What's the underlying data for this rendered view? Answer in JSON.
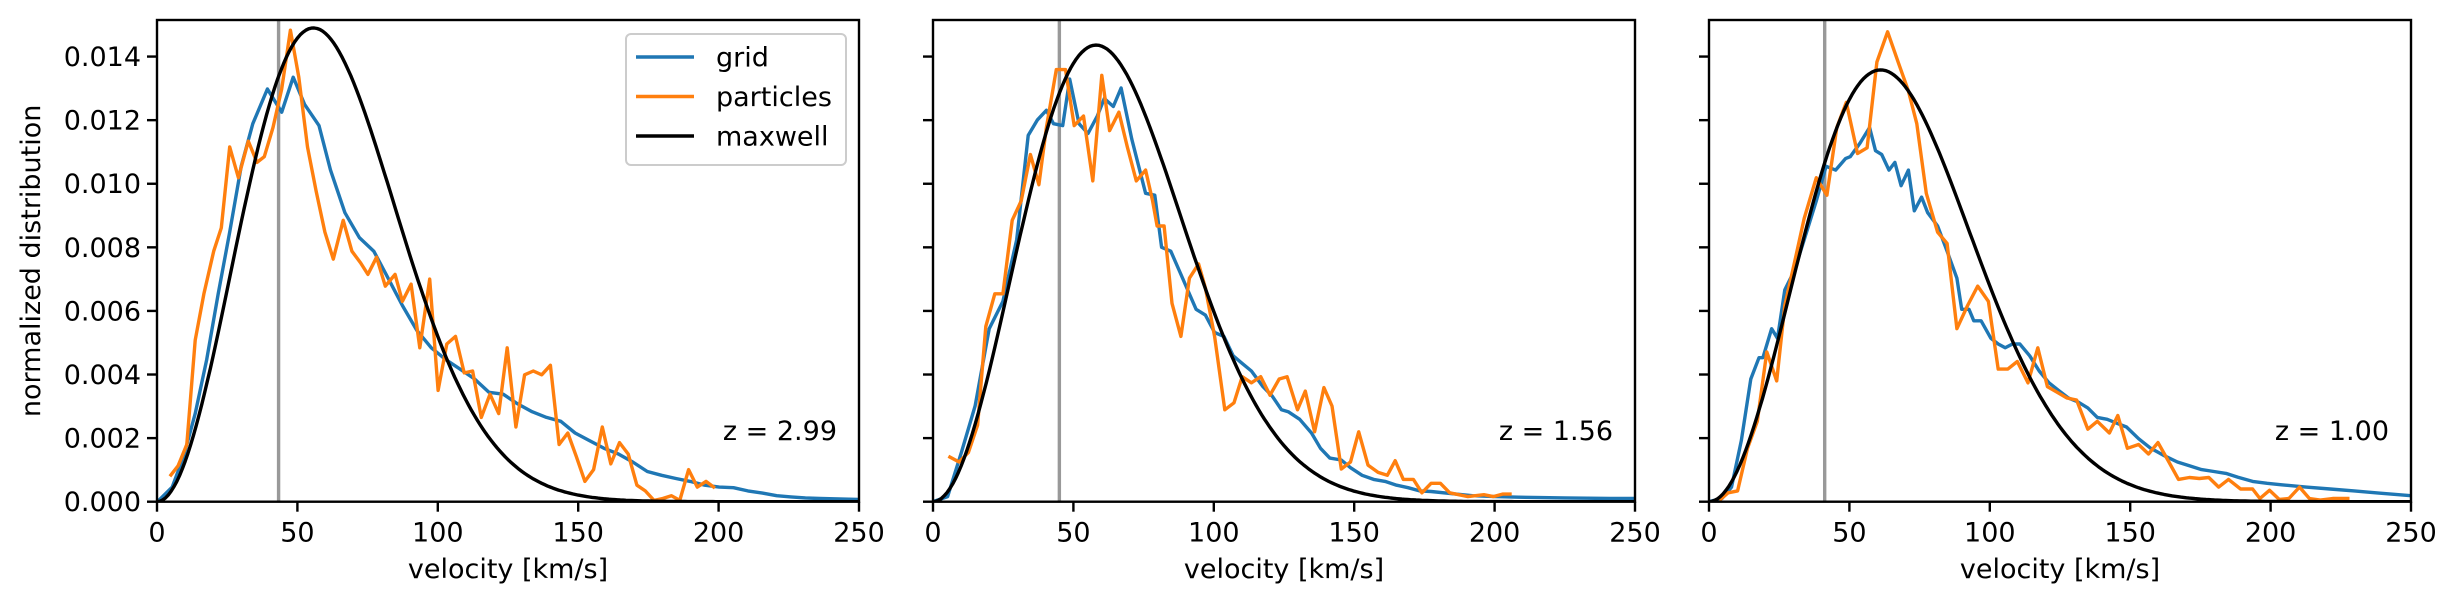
{
  "chart_data": [
    {
      "type": "line",
      "panel": 1,
      "title": "",
      "xlabel": "velocity [km/s]",
      "ylabel": "normalized distribution",
      "xlim": [
        0,
        250
      ],
      "ylim": [
        0,
        0.01515
      ],
      "grid": false,
      "x_ticks": [
        0,
        50,
        100,
        150,
        200,
        250
      ],
      "x_tick_labels": [
        "0",
        "50",
        "100",
        "150",
        "200",
        "250"
      ],
      "y_ticks": [
        0,
        0.002,
        0.004,
        0.006,
        0.008,
        0.01,
        0.012,
        0.014
      ],
      "y_tick_labels": [
        "0.000",
        "0.002",
        "0.004",
        "0.006",
        "0.008",
        "0.010",
        "0.012",
        "0.014"
      ],
      "show_y_tick_labels": true,
      "annotation": "z = 2.99",
      "vertical_line": {
        "x": 43.3,
        "color": "#999999"
      },
      "legend": {
        "placement": "top-right",
        "entries": [
          "grid",
          "particles",
          "maxwell"
        ]
      },
      "series": [
        {
          "name": "grid",
          "color": "#1f77b4",
          "x": [
            0.3,
            5.4,
            9.5,
            13.6,
            17.7,
            21.8,
            25.9,
            30.0,
            34.1,
            39.3,
            44.4,
            48.5,
            52.6,
            57.7,
            61.8,
            66.9,
            72.1,
            77.2,
            82.3,
            87.4,
            92.6,
            97.7,
            102.8,
            107.9,
            113.1,
            118.2,
            123.3,
            128.4,
            133.6,
            138.7,
            143.8,
            148.9,
            154.1,
            159.2,
            164.3,
            169.4,
            174.6,
            179.7,
            184.8,
            189.9,
            195.1,
            200.2,
            205.3,
            210.4,
            215.6,
            220.7,
            225.8,
            230.9,
            236.1,
            241.2,
            250.0
          ],
          "y": [
            1e-05,
            0.00046,
            0.00143,
            0.00277,
            0.00447,
            0.00654,
            0.00848,
            0.01055,
            0.01189,
            0.01298,
            0.01225,
            0.01335,
            0.01249,
            0.01183,
            0.01043,
            0.00909,
            0.0083,
            0.00788,
            0.00703,
            0.00617,
            0.00538,
            0.00484,
            0.00447,
            0.00417,
            0.00386,
            0.00344,
            0.00338,
            0.00308,
            0.00283,
            0.00265,
            0.00253,
            0.00216,
            0.00192,
            0.00168,
            0.0015,
            0.00125,
            0.00095,
            0.00083,
            0.00073,
            0.00064,
            0.00052,
            0.00046,
            0.00044,
            0.00034,
            0.00027,
            0.00019,
            0.00015,
            0.00012,
            0.0001,
            9e-05,
            7e-05
          ]
        },
        {
          "name": "particles",
          "color": "#ff7f0e",
          "x": [
            4.6,
            7.5,
            10.6,
            13.6,
            16.7,
            20.2,
            22.9,
            25.9,
            29.0,
            32.5,
            35.6,
            38.2,
            41.3,
            44.4,
            47.5,
            50.5,
            53.6,
            56.7,
            59.8,
            62.8,
            66.3,
            69.4,
            72.5,
            75.1,
            78.2,
            81.3,
            84.8,
            87.4,
            90.5,
            93.6,
            97.1,
            100.1,
            103.2,
            106.3,
            109.4,
            112.4,
            115.5,
            118.6,
            121.7,
            124.7,
            127.8,
            130.9,
            134.0,
            137.0,
            140.1,
            143.2,
            146.3,
            149.3,
            152.4,
            155.5,
            158.6,
            161.6,
            164.7,
            167.8,
            170.9,
            173.9,
            177.0,
            180.1,
            183.2,
            186.2,
            189.3,
            192.4,
            195.5,
            198.7
          ],
          "y": [
            0.0008,
            0.00113,
            0.0018,
            0.00508,
            0.00654,
            0.00788,
            0.00861,
            0.01116,
            0.01019,
            0.01134,
            0.01067,
            0.01085,
            0.01177,
            0.01298,
            0.01483,
            0.01335,
            0.01116,
            0.00976,
            0.00848,
            0.00763,
            0.00885,
            0.00788,
            0.00751,
            0.00715,
            0.00769,
            0.00678,
            0.00715,
            0.0063,
            0.00684,
            0.00484,
            0.007,
            0.0035,
            0.00496,
            0.0052,
            0.00405,
            0.00411,
            0.00265,
            0.00338,
            0.00277,
            0.00484,
            0.00235,
            0.00399,
            0.00411,
            0.00399,
            0.00429,
            0.0018,
            0.00216,
            0.00143,
            0.00064,
            0.00101,
            0.00235,
            0.00119,
            0.00186,
            0.0015,
            0.00052,
            0.00034,
            4e-05,
            0.0001,
            0.00019,
            4e-05,
            0.00101,
            0.00046,
            0.00064,
            0.00043
          ]
        },
        {
          "name": "maxwell",
          "color": "#000000",
          "model": "maxwell-boltzmann",
          "peak_velocity": 55.7,
          "peak_value": 0.0149
        }
      ]
    },
    {
      "type": "line",
      "panel": 2,
      "title": "",
      "xlabel": "velocity [km/s]",
      "ylabel": "",
      "xlim": [
        0,
        250
      ],
      "ylim": [
        0,
        0.01515
      ],
      "grid": false,
      "x_ticks": [
        0,
        50,
        100,
        150,
        200,
        250
      ],
      "x_tick_labels": [
        "0",
        "50",
        "100",
        "150",
        "200",
        "250"
      ],
      "y_ticks": [
        0,
        0.002,
        0.004,
        0.006,
        0.008,
        0.01,
        0.012,
        0.014
      ],
      "y_tick_labels": [],
      "show_y_tick_labels": false,
      "annotation": "z = 1.56",
      "vertical_line": {
        "x": 45.0,
        "color": "#999999"
      },
      "legend": null,
      "series": [
        {
          "name": "grid",
          "color": "#1f77b4",
          "x": [
            0.3,
            5.2,
            10.1,
            15.0,
            20.0,
            24.9,
            29.8,
            33.9,
            37.2,
            40.4,
            42.9,
            46.2,
            48.7,
            52.0,
            55.2,
            58.5,
            61.0,
            64.2,
            67.0,
            70.8,
            75.7,
            79.0,
            81.4,
            84.7,
            88.0,
            93.7,
            97.0,
            100.3,
            103.6,
            106.9,
            110.1,
            113.4,
            117.5,
            120.8,
            124.1,
            126.5,
            130.6,
            134.8,
            138.0,
            141.3,
            145.4,
            148.7,
            152.8,
            156.9,
            161.0,
            165.1,
            169.2,
            173.3,
            177.4,
            184.0,
            192.1,
            200.3,
            208.5,
            216.7,
            224.9,
            233.1,
            241.3,
            250.0
          ],
          "y": [
            1e-05,
            0.00016,
            0.00155,
            0.00301,
            0.00544,
            0.0063,
            0.00824,
            0.01152,
            0.01201,
            0.01231,
            0.01189,
            0.01183,
            0.01329,
            0.01189,
            0.01158,
            0.01213,
            0.01268,
            0.01243,
            0.01301,
            0.0114,
            0.0097,
            0.00964,
            0.008,
            0.00788,
            0.00721,
            0.00605,
            0.00587,
            0.00532,
            0.0052,
            0.00459,
            0.00435,
            0.00411,
            0.00362,
            0.00332,
            0.00289,
            0.00283,
            0.00259,
            0.00216,
            0.00168,
            0.00137,
            0.00131,
            0.00107,
            0.00083,
            0.0007,
            0.00064,
            0.00052,
            0.00044,
            0.00034,
            0.00032,
            0.00026,
            0.00019,
            0.00016,
            0.00014,
            0.00013,
            0.00012,
            0.00011,
            0.0001,
            0.0001
          ]
        },
        {
          "name": "particles",
          "color": "#ff7f0e",
          "x": [
            5.5,
            9.3,
            12.6,
            15.9,
            18.8,
            22.0,
            24.9,
            28.2,
            31.4,
            34.7,
            37.7,
            40.4,
            43.9,
            47.2,
            50.3,
            53.6,
            56.9,
            60.1,
            62.9,
            66.2,
            69.2,
            72.4,
            75.7,
            78.2,
            79.8,
            82.3,
            85.1,
            88.3,
            91.3,
            94.6,
            97.0,
            100.3,
            103.9,
            107.2,
            110.1,
            113.4,
            116.7,
            120.0,
            123.3,
            126.1,
            129.8,
            132.6,
            135.9,
            139.2,
            142.1,
            145.4,
            148.7,
            151.6,
            154.9,
            158.5,
            161.8,
            164.6,
            167.5,
            171.1,
            174.1,
            177.4,
            180.7,
            184.0,
            187.2,
            190.5,
            196.2,
            199.5,
            202.8,
            206.1
          ],
          "y": [
            0.00143,
            0.00125,
            0.00155,
            0.00241,
            0.00551,
            0.00654,
            0.00654,
            0.00885,
            0.00946,
            0.01092,
            0.00997,
            0.01177,
            0.01359,
            0.01359,
            0.01183,
            0.01213,
            0.01009,
            0.01341,
            0.01167,
            0.01225,
            0.01116,
            0.01009,
            0.01043,
            0.00946,
            0.00867,
            0.00867,
            0.00624,
            0.0052,
            0.00703,
            0.00748,
            0.00672,
            0.0052,
            0.00289,
            0.00311,
            0.00393,
            0.00374,
            0.00393,
            0.00335,
            0.00386,
            0.00393,
            0.00289,
            0.00348,
            0.0022,
            0.00359,
            0.00301,
            0.00103,
            0.00125,
            0.0022,
            0.00115,
            0.00092,
            0.00083,
            0.00129,
            0.0007,
            0.0007,
            0.00028,
            0.00058,
            0.00058,
            0.00028,
            0.00022,
            0.00016,
            0.00022,
            0.00016,
            0.00024,
            0.00024
          ]
        },
        {
          "name": "maxwell",
          "color": "#000000",
          "model": "maxwell-boltzmann",
          "peak_velocity": 58.1,
          "peak_value": 0.01436
        }
      ]
    },
    {
      "type": "line",
      "panel": 3,
      "title": "",
      "xlabel": "velocity [km/s]",
      "ylabel": "",
      "xlim": [
        0,
        250
      ],
      "ylim": [
        0,
        0.01515
      ],
      "grid": false,
      "x_ticks": [
        0,
        50,
        100,
        150,
        200,
        250
      ],
      "x_tick_labels": [
        "0",
        "50",
        "100",
        "150",
        "200",
        "250"
      ],
      "y_ticks": [
        0,
        0.002,
        0.004,
        0.006,
        0.008,
        0.01,
        0.012,
        0.014
      ],
      "y_tick_labels": [],
      "show_y_tick_labels": false,
      "annotation": "z = 1.00",
      "vertical_line": {
        "x": 41.2,
        "color": "#999999"
      },
      "legend": null,
      "series": [
        {
          "name": "grid",
          "color": "#1f77b4",
          "x": [
            0.2,
            4.6,
            8.0,
            11.5,
            14.9,
            17.8,
            19.2,
            22.3,
            24.4,
            27.0,
            30.4,
            33.9,
            38.2,
            41.7,
            45.1,
            48.6,
            50.3,
            53.8,
            57.2,
            59.3,
            61.5,
            64.1,
            66.2,
            68.4,
            71.0,
            73.1,
            75.7,
            77.9,
            81.4,
            84.8,
            88.3,
            90.0,
            92.6,
            94.3,
            96.9,
            100.4,
            103.0,
            105.5,
            108.1,
            110.7,
            114.2,
            117.6,
            121.1,
            124.5,
            128.0,
            131.4,
            134.9,
            138.3,
            141.8,
            145.2,
            148.7,
            153.0,
            157.3,
            162.5,
            166.8,
            171.1,
            175.4,
            179.8,
            184.1,
            188.4,
            193.6,
            198.8,
            203.9,
            212.6,
            221.2,
            229.8,
            238.5,
            250.0
          ],
          "y": [
            1e-05,
            0.0001,
            0.00046,
            0.00192,
            0.00386,
            0.00453,
            0.00453,
            0.00544,
            0.00514,
            0.00666,
            0.00727,
            0.00824,
            0.00946,
            0.01055,
            0.01043,
            0.01079,
            0.01085,
            0.01128,
            0.01177,
            0.01104,
            0.01092,
            0.01043,
            0.01067,
            0.00994,
            0.01043,
            0.00915,
            0.00958,
            0.00909,
            0.00867,
            0.00788,
            0.00703,
            0.00605,
            0.00605,
            0.00569,
            0.00569,
            0.00514,
            0.00496,
            0.00484,
            0.00496,
            0.00496,
            0.00459,
            0.00411,
            0.00374,
            0.0035,
            0.00326,
            0.00314,
            0.00295,
            0.00265,
            0.00259,
            0.00247,
            0.00235,
            0.00198,
            0.00168,
            0.00143,
            0.00125,
            0.00113,
            0.00101,
            0.00095,
            0.00089,
            0.00077,
            0.00064,
            0.00058,
            0.00053,
            0.00046,
            0.0004,
            0.00034,
            0.00027,
            0.00019
          ]
        },
        {
          "name": "particles",
          "color": "#ff7f0e",
          "x": [
            3.7,
            6.8,
            10.2,
            13.7,
            17.2,
            20.6,
            24.1,
            27.0,
            30.4,
            33.9,
            38.2,
            42.0,
            45.5,
            48.9,
            52.9,
            56.3,
            59.8,
            63.6,
            67.6,
            71.0,
            74.0,
            77.4,
            81.4,
            84.8,
            88.3,
            92.1,
            95.7,
            99.5,
            103.0,
            106.4,
            109.8,
            113.6,
            117.1,
            120.5,
            124.0,
            127.5,
            130.9,
            134.9,
            138.3,
            142.6,
            145.6,
            149.0,
            153.0,
            156.5,
            159.9,
            163.4,
            167.2,
            171.1,
            174.6,
            178.0,
            181.5,
            185.0,
            189.3,
            193.6,
            196.2,
            199.6,
            203.1,
            206.5,
            210.3,
            213.8,
            217.7,
            222.1,
            228.1
          ],
          "y": [
            4e-05,
            0.00028,
            0.00034,
            0.00168,
            0.00253,
            0.00471,
            0.0038,
            0.00617,
            0.00751,
            0.00891,
            0.01019,
            0.00964,
            0.01177,
            0.01256,
            0.01095,
            0.01113,
            0.01383,
            0.01478,
            0.01377,
            0.01292,
            0.01189,
            0.0097,
            0.00848,
            0.00812,
            0.00544,
            0.00617,
            0.00678,
            0.0063,
            0.00417,
            0.00417,
            0.00441,
            0.00374,
            0.00484,
            0.00362,
            0.00344,
            0.00326,
            0.0032,
            0.00228,
            0.00253,
            0.00216,
            0.00271,
            0.00168,
            0.0018,
            0.0015,
            0.00186,
            0.00131,
            0.0007,
            0.00076,
            0.00073,
            0.00076,
            0.00046,
            0.0007,
            0.0004,
            0.0004,
            0.0001,
            0.00036,
            7e-05,
            0.0001,
            0.00046,
            0.0001,
            5e-05,
            0.0001,
            0.0001
          ]
        },
        {
          "name": "maxwell",
          "color": "#000000",
          "model": "maxwell-boltzmann",
          "peak_velocity": 61.1,
          "peak_value": 0.01358
        }
      ]
    }
  ]
}
